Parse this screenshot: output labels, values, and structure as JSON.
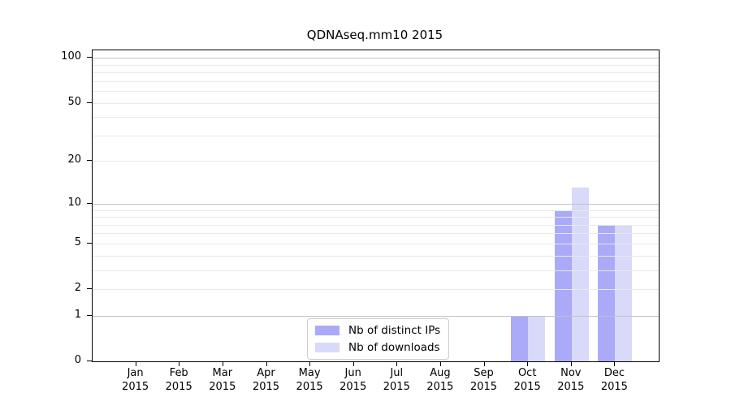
{
  "title": "QDNAseq.mm10 2015",
  "legend": {
    "items": [
      {
        "label": "Nb of distinct IPs",
        "color": "#aaaaf8"
      },
      {
        "label": "Nb of downloads",
        "color": "#d9d9fa"
      }
    ]
  },
  "chart_data": {
    "type": "bar",
    "title": "QDNAseq.mm10 2015",
    "year": "2015",
    "categories": [
      "Jan",
      "Feb",
      "Mar",
      "Apr",
      "May",
      "Jun",
      "Jul",
      "Aug",
      "Sep",
      "Oct",
      "Nov",
      "Dec"
    ],
    "series": [
      {
        "name": "Nb of distinct IPs",
        "color": "#aaaaf8",
        "values": [
          0,
          0,
          0,
          0,
          0,
          0,
          0,
          0,
          0,
          1,
          9,
          7
        ]
      },
      {
        "name": "Nb of downloads",
        "color": "#d9d9fa",
        "values": [
          0,
          0,
          0,
          0,
          0,
          0,
          0,
          0,
          0,
          1,
          13,
          7
        ]
      }
    ],
    "scale": "log1p",
    "ylim": [
      0,
      112
    ],
    "yticks": [
      0,
      1,
      2,
      5,
      10,
      20,
      50,
      100
    ],
    "grid": {
      "major": [
        1,
        10,
        100
      ],
      "minor": [
        2,
        3,
        4,
        5,
        6,
        7,
        8,
        9,
        20,
        30,
        40,
        50,
        60,
        70,
        80,
        90
      ],
      "major_color": "#c2c2c2",
      "minor_color": "#e9e9e9"
    },
    "legend_position": "lower center",
    "xlabel": "",
    "ylabel": ""
  }
}
